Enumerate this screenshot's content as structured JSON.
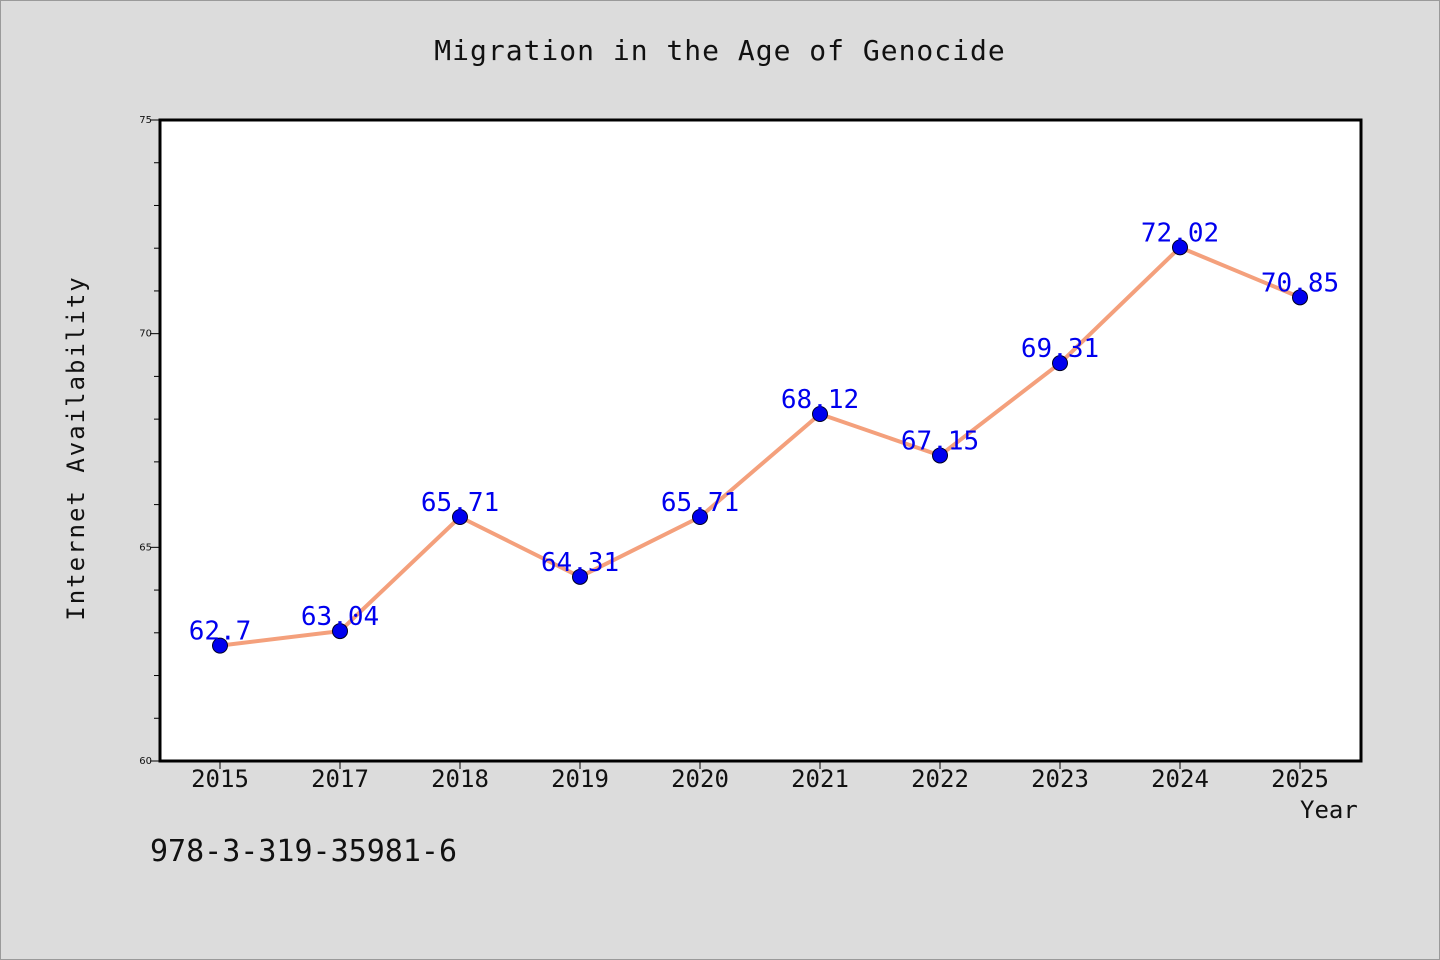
{
  "chart_data": {
    "type": "line",
    "title": "Migration in the Age of Genocide",
    "xlabel": "Year",
    "ylabel": "Internet Availability",
    "categories": [
      "2015",
      "2017",
      "2018",
      "2019",
      "2020",
      "2021",
      "2022",
      "2023",
      "2024",
      "2025"
    ],
    "values": [
      62.7,
      63.04,
      65.71,
      64.31,
      65.71,
      68.12,
      67.15,
      69.31,
      72.02,
      70.85
    ],
    "data_labels": [
      "62.7",
      "63.04",
      "65.71",
      "64.31",
      "65.71",
      "68.12",
      "67.15",
      "69.31",
      "72.02",
      "70.85"
    ],
    "ylim": [
      60,
      75
    ],
    "yticks": [
      "60",
      "65",
      "70",
      "75"
    ],
    "grid": false,
    "colors": {
      "line": "#f4a07c",
      "marker": "#0000ee",
      "label": "#0000ee",
      "background": "#dcdcdc",
      "plot_area": "#ffffff"
    }
  },
  "footer": {
    "isbn": "978-3-319-35981-6"
  }
}
